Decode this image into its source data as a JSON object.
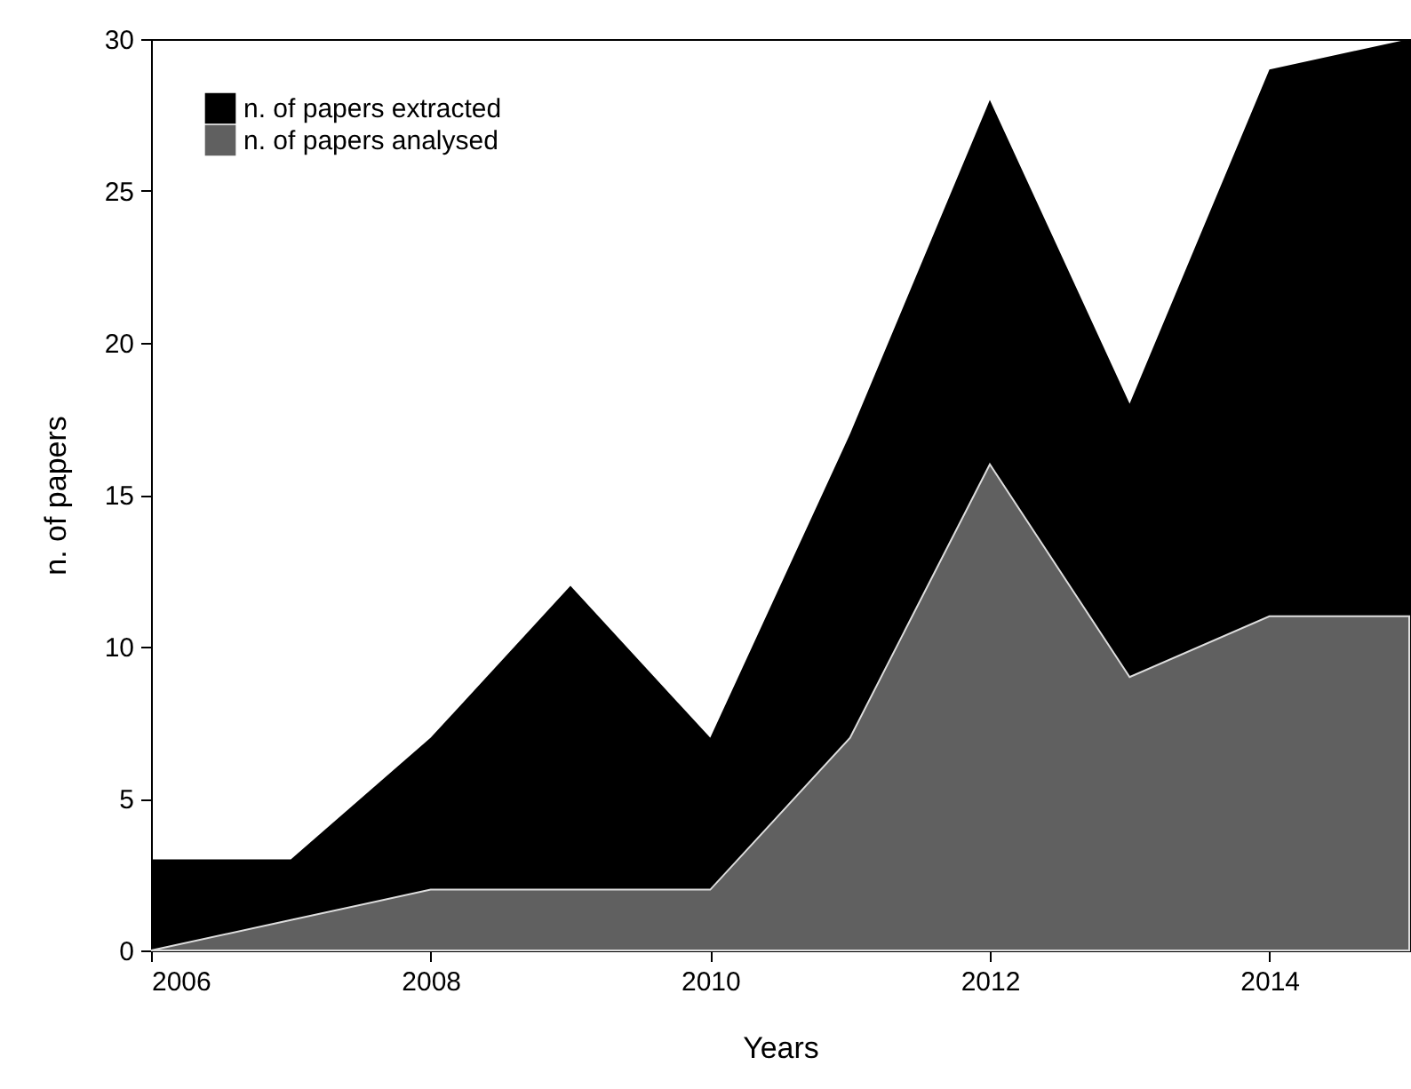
{
  "chart_data": {
    "type": "area",
    "xlabel": "Years",
    "ylabel": "n. of papers",
    "x": [
      2006,
      2007,
      2008,
      2009,
      2010,
      2011,
      2012,
      2013,
      2014,
      2015
    ],
    "series": [
      {
        "name": "n. of papers extracted",
        "color": "#000000",
        "values": [
          3,
          3,
          7,
          12,
          7,
          17,
          28,
          18,
          29,
          30
        ]
      },
      {
        "name": "n. of papers analysed",
        "color": "#606060",
        "values": [
          0,
          1,
          2,
          2,
          2,
          7,
          16,
          9,
          11,
          11
        ]
      }
    ],
    "xlim": [
      2006,
      2015
    ],
    "xticks": [
      2006,
      2008,
      2010,
      2012,
      2014
    ],
    "ylim": [
      0,
      30
    ],
    "yticks": [
      0,
      5,
      10,
      15,
      20,
      25,
      30
    ],
    "legend": "top left",
    "grid": false
  }
}
